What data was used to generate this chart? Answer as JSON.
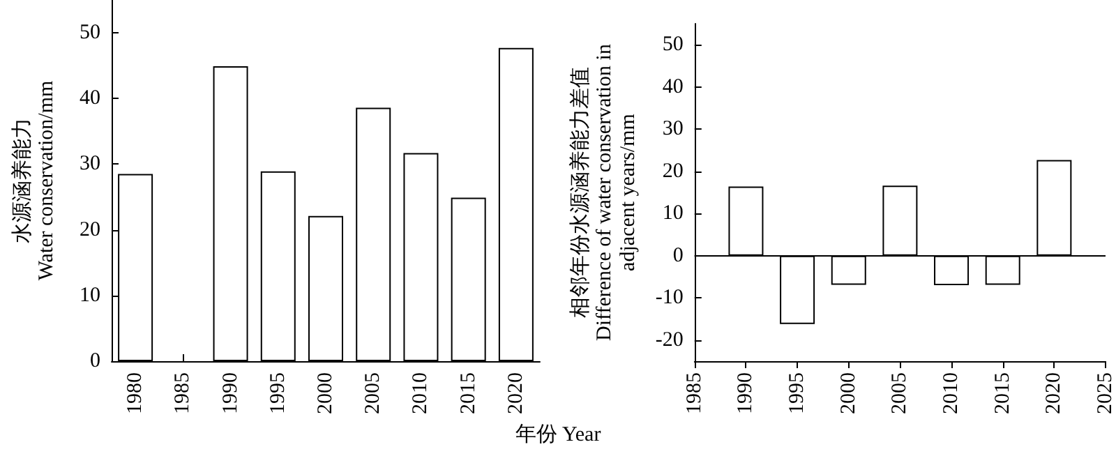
{
  "chart_data": [
    {
      "type": "bar",
      "ylabel": "水源涵养能力\nWater conservation/mm",
      "xlabel": "年份 Year",
      "categories": [
        "1980",
        "1985",
        "1990",
        "1995",
        "2000",
        "2005",
        "2010",
        "2015",
        "2020"
      ],
      "values": [
        28.5,
        null,
        44.9,
        28.9,
        22.1,
        38.6,
        31.7,
        24.9,
        47.7
      ],
      "color": "#ffffff",
      "ylim": [
        0,
        55
      ],
      "yticks": [
        0,
        10,
        20,
        30,
        40,
        50
      ],
      "grid": false
    },
    {
      "type": "bar",
      "ylabel": "相邻年份水源涵养能力差值\nDifference of water conservation in\nadjacent years/mm",
      "x": [
        1990,
        1995,
        2000,
        2005,
        2010,
        2015,
        2020
      ],
      "values": [
        16.4,
        -16.2,
        -6.9,
        16.6,
        -7.0,
        -6.9,
        22.7
      ],
      "color": "#ffffff",
      "xlim": [
        1985,
        2025
      ],
      "xticks": [
        1985,
        1990,
        1995,
        2000,
        2005,
        2010,
        2015,
        2020,
        2025
      ],
      "ylim": [
        -25,
        55
      ],
      "yticks": [
        -20,
        -10,
        0,
        10,
        20,
        30,
        40,
        50
      ],
      "grid": false,
      "ref_lines": [
        {
          "axis": "y",
          "value": 0
        }
      ]
    }
  ]
}
